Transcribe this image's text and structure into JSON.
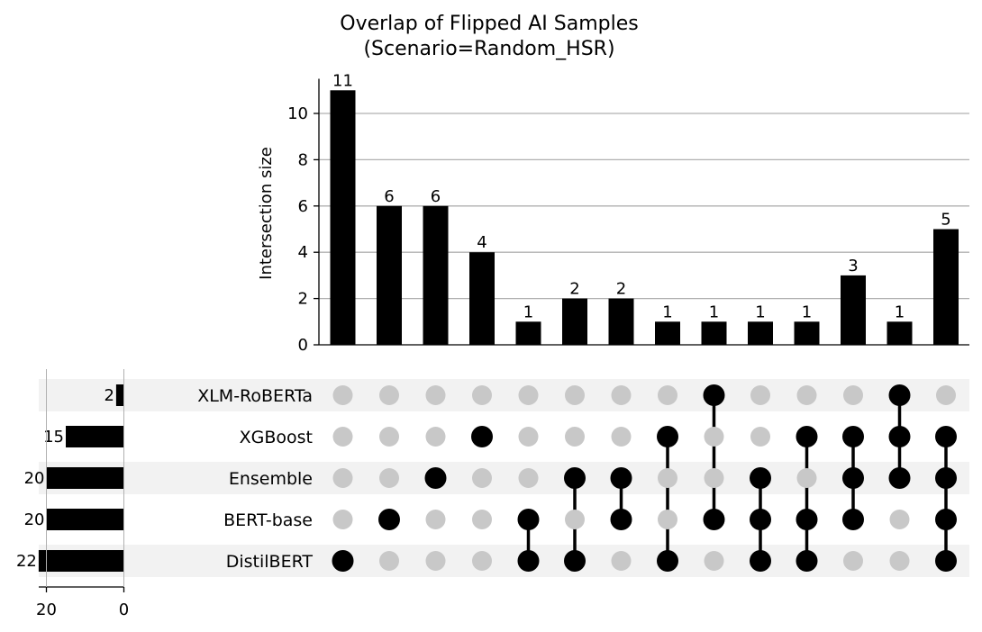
{
  "chart_data": {
    "type": "upset",
    "title_lines": [
      "Overlap of Flipped AI Samples",
      "(Scenario=Random_HSR)"
    ],
    "ylabel": "Intersection size",
    "ylim": [
      0,
      11.5
    ],
    "yticks": [
      0,
      2,
      4,
      6,
      8,
      10
    ],
    "grid": true,
    "sets": [
      {
        "name": "XLM-RoBERTa",
        "size": 2
      },
      {
        "name": "XGBoost",
        "size": 15
      },
      {
        "name": "Ensemble",
        "size": 20
      },
      {
        "name": "BERT-base",
        "size": 20
      },
      {
        "name": "DistilBERT",
        "size": 22
      }
    ],
    "set_size_ticks": [
      20,
      0
    ],
    "intersections": [
      {
        "members": [
          "DistilBERT"
        ],
        "size": 11
      },
      {
        "members": [
          "BERT-base"
        ],
        "size": 6
      },
      {
        "members": [
          "Ensemble"
        ],
        "size": 6
      },
      {
        "members": [
          "XGBoost"
        ],
        "size": 4
      },
      {
        "members": [
          "BERT-base",
          "DistilBERT"
        ],
        "size": 1
      },
      {
        "members": [
          "Ensemble",
          "DistilBERT"
        ],
        "size": 2
      },
      {
        "members": [
          "Ensemble",
          "BERT-base"
        ],
        "size": 2
      },
      {
        "members": [
          "XGBoost",
          "DistilBERT"
        ],
        "size": 1
      },
      {
        "members": [
          "XLM-RoBERTa",
          "BERT-base"
        ],
        "size": 1
      },
      {
        "members": [
          "Ensemble",
          "BERT-base",
          "DistilBERT"
        ],
        "size": 1
      },
      {
        "members": [
          "XGBoost",
          "BERT-base",
          "DistilBERT"
        ],
        "size": 1
      },
      {
        "members": [
          "XGBoost",
          "Ensemble",
          "BERT-base"
        ],
        "size": 3
      },
      {
        "members": [
          "XLM-RoBERTa",
          "XGBoost",
          "Ensemble"
        ],
        "size": 1
      },
      {
        "members": [
          "XGBoost",
          "Ensemble",
          "BERT-base",
          "DistilBERT"
        ],
        "size": 5
      }
    ]
  }
}
